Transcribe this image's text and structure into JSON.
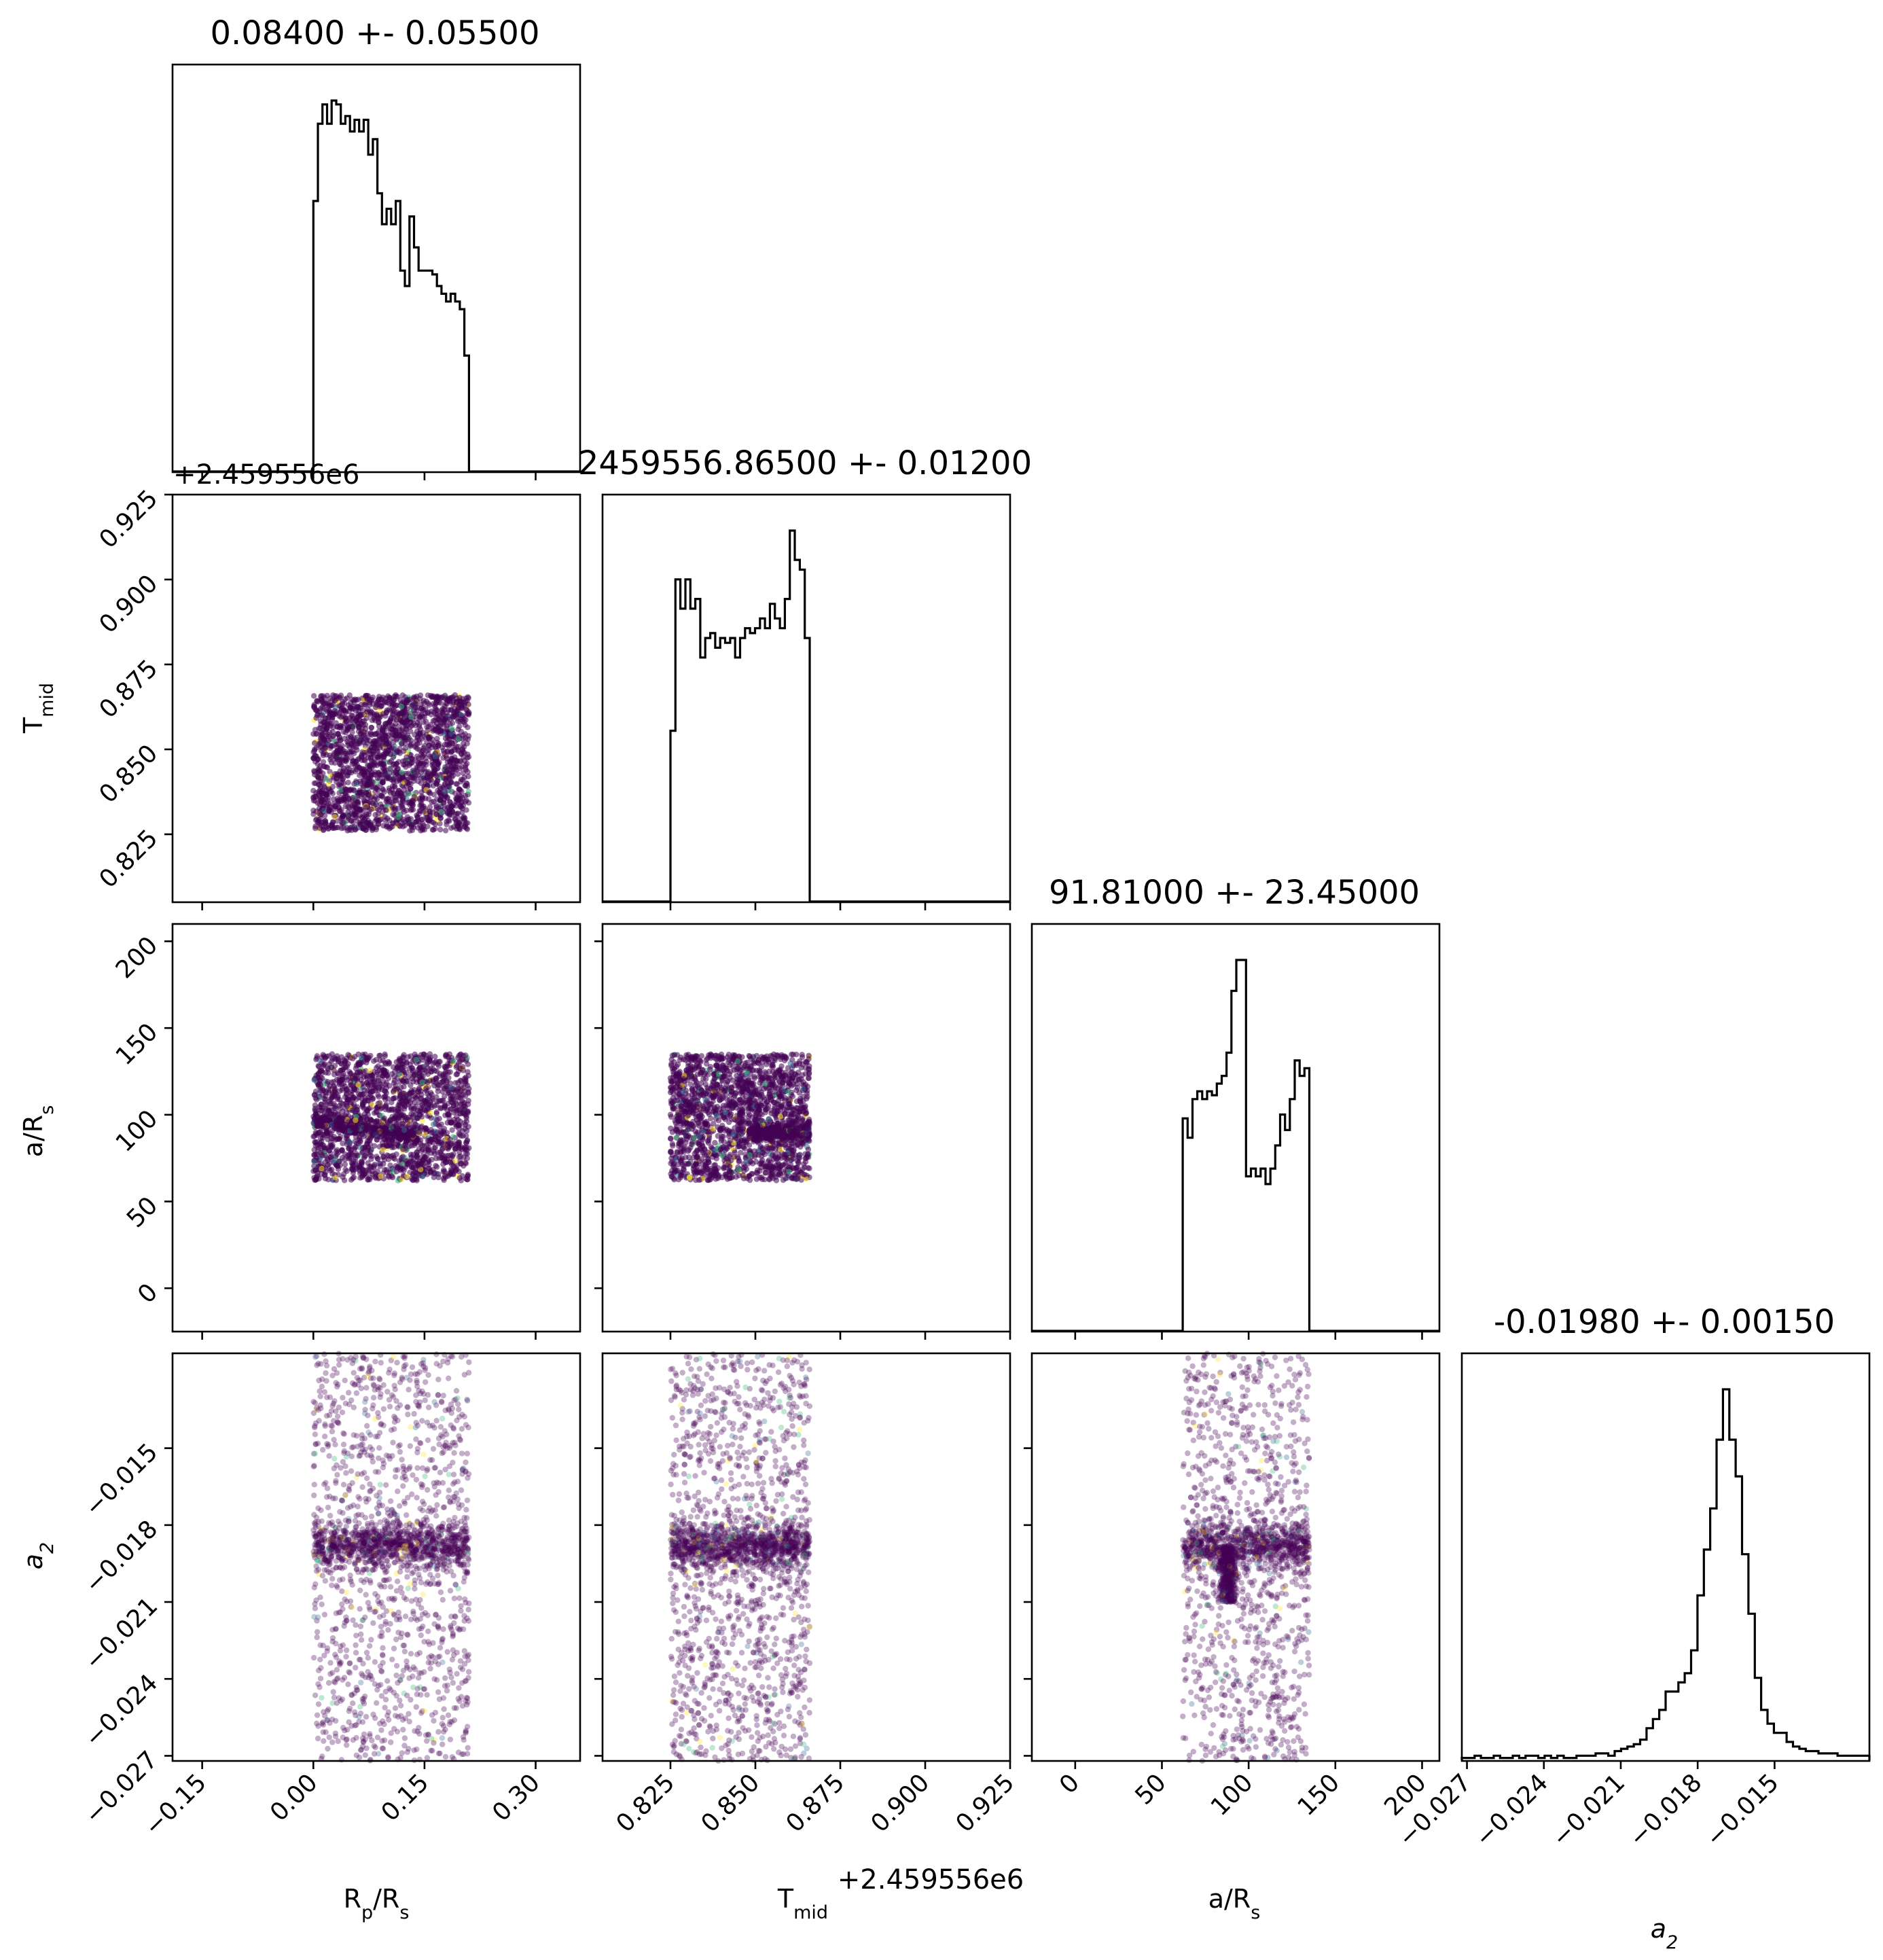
{
  "figure": {
    "titles": [
      "0.08400 +- 0.05500",
      "2459556.86500 +- 0.01200",
      "91.81000 +- 23.45000",
      "-0.01980 +- 0.00150"
    ],
    "offset_labels": [
      "+2.459556e6",
      "+2.459556e6"
    ],
    "axis_labels": {
      "x": [
        {
          "base": "R",
          "sub": "p",
          "tail": "/R",
          "sub2": "s"
        },
        {
          "base": "T",
          "sub": "mid",
          "tail": "",
          "sub2": ""
        },
        {
          "base": "a/R",
          "sub": "s",
          "tail": "",
          "sub2": ""
        },
        {
          "base": "a",
          "sub": "2",
          "tail": "",
          "sub2": "",
          "italic": true
        }
      ],
      "y": [
        {
          "base": "T",
          "sub": "mid",
          "tail": "",
          "sub2": ""
        },
        {
          "base": "a/R",
          "sub": "s",
          "tail": "",
          "sub2": ""
        },
        {
          "base": "a",
          "sub": "2",
          "tail": "",
          "sub2": "",
          "italic": true
        }
      ]
    },
    "point_color": "#440154",
    "accent_colors": [
      "#31688e",
      "#35b779",
      "#fde725"
    ]
  },
  "chart_data": {
    "type": "scatter",
    "subtype": "corner",
    "parameters": [
      "Rp/Rs",
      "Tmid",
      "a/Rs",
      "a2"
    ],
    "ranges": [
      [
        -0.19,
        0.36
      ],
      [
        0.805,
        0.925
      ],
      [
        -25,
        210
      ],
      [
        -0.0272,
        -0.0113
      ]
    ],
    "ticks": [
      {
        "values": [
          -0.15,
          0.0,
          0.15,
          0.3
        ],
        "labels": [
          "−0.15",
          "0.00",
          "0.15",
          "0.30"
        ]
      },
      {
        "values": [
          0.825,
          0.85,
          0.875,
          0.9,
          0.925
        ],
        "labels": [
          "0.825",
          "0.850",
          "0.875",
          "0.900",
          "0.925"
        ]
      },
      {
        "values": [
          0,
          50,
          100,
          150,
          200
        ],
        "labels": [
          "0",
          "50",
          "100",
          "150",
          "200"
        ]
      },
      {
        "values": [
          -0.027,
          -0.024,
          -0.021,
          -0.018,
          -0.015
        ],
        "labels": [
          "−0.027",
          "−0.024",
          "−0.021",
          "−0.018",
          "−0.015"
        ]
      }
    ],
    "histograms": [
      {
        "edges": [
          0.0,
          0.21
        ],
        "counts": [
          70,
          90,
          95,
          90,
          96,
          95,
          90,
          92,
          88,
          91,
          88,
          91,
          82,
          86,
          72,
          64,
          68,
          64,
          70,
          52,
          48,
          66,
          58,
          52,
          52,
          52,
          51,
          48,
          46,
          44,
          46,
          44,
          42,
          30
        ]
      },
      {
        "edges": [
          0.825,
          0.866
        ],
        "counts": [
          35,
          66,
          60,
          66,
          60,
          62,
          50,
          54,
          55,
          52,
          54,
          53,
          54,
          50,
          54,
          56,
          55,
          56,
          58,
          56,
          61,
          58,
          56,
          62,
          76,
          70,
          68,
          54
        ]
      },
      {
        "edges": [
          62,
          135
        ],
        "counts": [
          55,
          50,
          60,
          62,
          60,
          62,
          61,
          64,
          66,
          72,
          88,
          96,
          96,
          40,
          42,
          40,
          42,
          38,
          42,
          48,
          56,
          52,
          60,
          70,
          66,
          68
        ]
      },
      {
        "edges": [
          -0.0272,
          -0.0113
        ],
        "counts": [
          1,
          1,
          2,
          1,
          1,
          2,
          1,
          1,
          2,
          1,
          2,
          2,
          1,
          2,
          1,
          2,
          1,
          1,
          2,
          2,
          2,
          3,
          3,
          2,
          4,
          5,
          6,
          7,
          9,
          14,
          18,
          22,
          30,
          30,
          34,
          38,
          48,
          72,
          92,
          110,
          140,
          162,
          140,
          124,
          90,
          64,
          36,
          22,
          16,
          12,
          12,
          8,
          6,
          5,
          4,
          4,
          3,
          3,
          3,
          2,
          2,
          2,
          2,
          2
        ]
      }
    ],
    "scatter_pairs": [
      {
        "x": "Rp/Rs",
        "y": "Tmid",
        "points": 2200,
        "x_range": [
          0.0,
          0.21
        ],
        "y_range": [
          0.826,
          0.866
        ],
        "structure": "uniform block"
      },
      {
        "x": "Rp/Rs",
        "y": "a/Rs",
        "points": 2200,
        "x_range": [
          0.0,
          0.21
        ],
        "y_range": [
          62,
          135
        ],
        "structure": "band from (0.0, 97) to (0.14, 87)"
      },
      {
        "x": "Tmid",
        "y": "a/Rs",
        "points": 2200,
        "x_range": [
          0.825,
          0.866
        ],
        "y_range": [
          62,
          135
        ],
        "structure": "band at a/Rs 85-95 for Tmid > 0.848"
      },
      {
        "x": "Rp/Rs",
        "y": "a2",
        "points": 2200,
        "x_range": [
          0.0,
          0.21
        ],
        "y_range": [
          -0.0272,
          -0.0113
        ],
        "structure": "core at a2 -0.0188"
      },
      {
        "x": "Tmid",
        "y": "a2",
        "points": 2200,
        "x_range": [
          0.825,
          0.866
        ],
        "y_range": [
          -0.0272,
          -0.0113
        ],
        "structure": "core at a2 -0.0188"
      },
      {
        "x": "a/Rs",
        "y": "a2",
        "points": 2200,
        "x_range": [
          62,
          135
        ],
        "y_range": [
          -0.0272,
          -0.0113
        ],
        "structure": "core at a2 -0.0188 with dense column near a/Rs 88"
      }
    ]
  }
}
